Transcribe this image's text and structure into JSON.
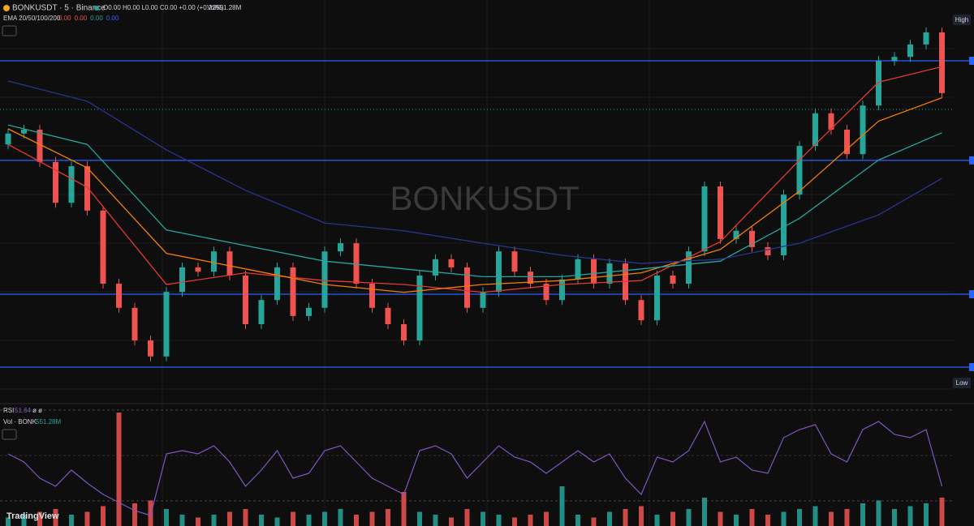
{
  "header": {
    "symbol": "BONKUSDT · 5 · Binance",
    "ohlc": "O0.00 H0.00 L0.00 C0.00 +0.00 (+0.22%)",
    "volume": "Vol551.28M",
    "ema_label": "EMA 20/50/100/200",
    "ema_values": [
      "0.00",
      "0.00",
      "0.00",
      "0.00"
    ],
    "rsi_label": "RSI",
    "rsi_value": "51.64",
    "rsi_extra": "ø ø",
    "vol_label": "Vol · BONK",
    "vol_value": "551.28M",
    "watermark": "BONKUSDT",
    "high": "High",
    "low": "Low",
    "logo": "TradingView"
  },
  "chart_data": {
    "type": "candlestick",
    "ylim": [
      0,
      100
    ],
    "open": [
      66,
      68.8,
      69.8,
      61.5,
      51.0,
      60.4,
      49.0,
      30.2,
      24.0,
      15.6,
      11.5,
      28.1,
      34.4,
      33.3,
      38.5,
      32.3,
      19.8,
      26.0,
      34.4,
      21.9,
      24.0,
      38.5,
      40.6,
      30.2,
      24.0,
      19.8,
      15.6,
      32.3,
      36.5,
      34.4,
      24.0,
      28.1,
      38.5,
      33.3,
      30.2,
      26.0,
      31.3,
      36.5,
      30.2,
      35.4,
      26.0,
      20.8,
      32.3,
      30.2,
      38.5,
      55.2,
      41.7,
      43.8,
      39.6,
      37.5,
      53.1,
      65.6,
      74.0,
      69.8,
      63.5,
      76.0,
      87.5,
      88.5,
      91.7,
      94.8
    ],
    "close": [
      68.8,
      69.8,
      61.5,
      51.0,
      60.4,
      49.0,
      30.2,
      24.0,
      15.6,
      11.5,
      28.1,
      34.4,
      33.3,
      38.5,
      32.3,
      19.8,
      26.0,
      34.4,
      21.9,
      24.0,
      38.5,
      40.6,
      30.2,
      24.0,
      19.8,
      15.6,
      32.3,
      36.5,
      34.4,
      24.0,
      28.1,
      38.5,
      33.3,
      30.2,
      26.0,
      31.3,
      36.5,
      30.2,
      35.4,
      26.0,
      20.8,
      32.3,
      30.2,
      38.5,
      55.2,
      41.7,
      43.8,
      39.6,
      37.5,
      53.1,
      65.6,
      74.0,
      69.8,
      63.5,
      76.0,
      87.5,
      88.5,
      91.7,
      94.8,
      79.2
    ],
    "ema_x": [
      0,
      5,
      10,
      15,
      20,
      25,
      30,
      35,
      40,
      45,
      50,
      55,
      59
    ],
    "series": [
      {
        "name": "EMA 20",
        "color": "#e53935",
        "values": [
          66,
          55,
          30,
          33,
          31,
          30,
          28,
          30,
          31,
          41,
          62,
          82,
          86
        ]
      },
      {
        "name": "EMA 50",
        "color": "#f57c00",
        "values": [
          70,
          60,
          38,
          34,
          30,
          28,
          30,
          31,
          33,
          39,
          54,
          72,
          78
        ]
      },
      {
        "name": "EMA 100",
        "color": "#26a69a",
        "values": [
          71,
          66,
          44,
          40,
          36,
          34,
          32,
          32,
          34,
          36,
          47,
          62,
          69
        ]
      },
      {
        "name": "EMA 200",
        "color": "#283593",
        "values": [
          82.3,
          77.1,
          64.6,
          54.2,
          45.8,
          43.8,
          40.6,
          37.5,
          35.4,
          36.5,
          40.6,
          47.9,
          57.3
        ]
      }
    ],
    "levels": [
      87.5,
      61.9,
      27.5,
      8.75
    ],
    "level_color": "#2962ff",
    "dotted_level": 75,
    "rsi": [
      60,
      55,
      45,
      40,
      50,
      42,
      35,
      30,
      25,
      22,
      60,
      62,
      60,
      65,
      55,
      40,
      50,
      62,
      45,
      48,
      62,
      65,
      55,
      45,
      40,
      35,
      62,
      65,
      60,
      45,
      55,
      65,
      58,
      55,
      48,
      55,
      62,
      55,
      60,
      45,
      35,
      58,
      55,
      62,
      80,
      55,
      58,
      50,
      48,
      70,
      75,
      78,
      60,
      55,
      75,
      80,
      72,
      70,
      75,
      40
    ],
    "rsi_lim": [
      20,
      90
    ],
    "rsi_color": "#7e57c2",
    "volume": [
      3,
      4,
      5,
      6,
      4,
      5,
      7,
      40,
      8,
      9,
      6,
      4,
      3,
      4,
      5,
      6,
      4,
      3,
      5,
      4,
      5,
      6,
      4,
      5,
      6,
      12,
      5,
      4,
      3,
      6,
      5,
      4,
      3,
      4,
      5,
      14,
      4,
      3,
      5,
      6,
      7,
      4,
      5,
      6,
      10,
      5,
      4,
      6,
      4,
      5,
      6,
      7,
      5,
      6,
      8,
      9,
      6,
      7,
      8,
      10
    ],
    "volume_max": 40,
    "up_color": "#26a69a",
    "down_color": "#ef5350"
  }
}
